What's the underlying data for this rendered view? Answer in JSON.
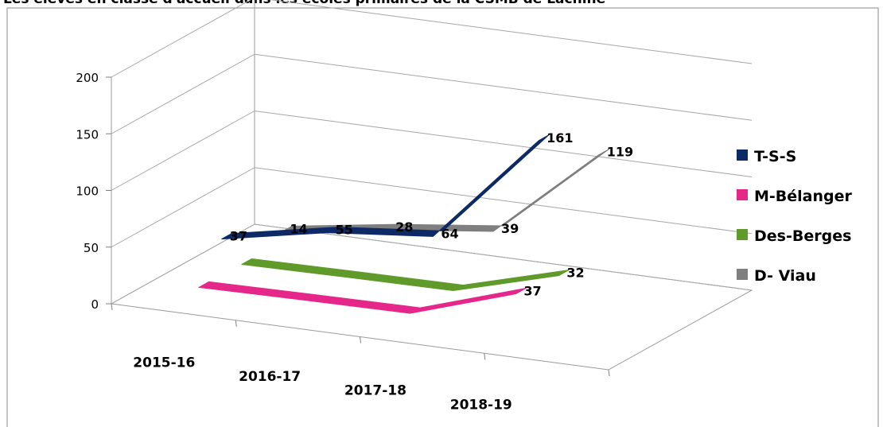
{
  "chart_data": {
    "type": "line",
    "title": "Les élèves en classe d'accueil dans les écoles primaires de la CSMB de Lachine",
    "categories": [
      "2015-16",
      "2016-17",
      "2017-18",
      "2018-19"
    ],
    "ylim": [
      0,
      200
    ],
    "yticks": [
      0,
      50,
      100,
      150,
      200
    ],
    "grid": true,
    "legend": "right",
    "series": [
      {
        "name": "T-S-S",
        "color": "#0e2a66",
        "values": [
          37,
          55,
          64,
          161
        ],
        "labels": [
          "37",
          "55",
          "64",
          "161"
        ]
      },
      {
        "name": "M-Bélanger",
        "color": "#e5278a",
        "values": [
          null,
          null,
          null,
          37
        ],
        "labels": [
          "",
          "",
          "",
          "37"
        ]
      },
      {
        "name": "Des-Berges",
        "color": "#5f9a2a",
        "values": [
          null,
          null,
          null,
          32
        ],
        "labels": [
          "",
          "",
          "",
          "32"
        ]
      },
      {
        "name": "D- Viau",
        "color": "#7f7f7f",
        "values": [
          14,
          28,
          39,
          119
        ],
        "labels": [
          "14",
          "28",
          "39",
          "119"
        ]
      }
    ]
  }
}
